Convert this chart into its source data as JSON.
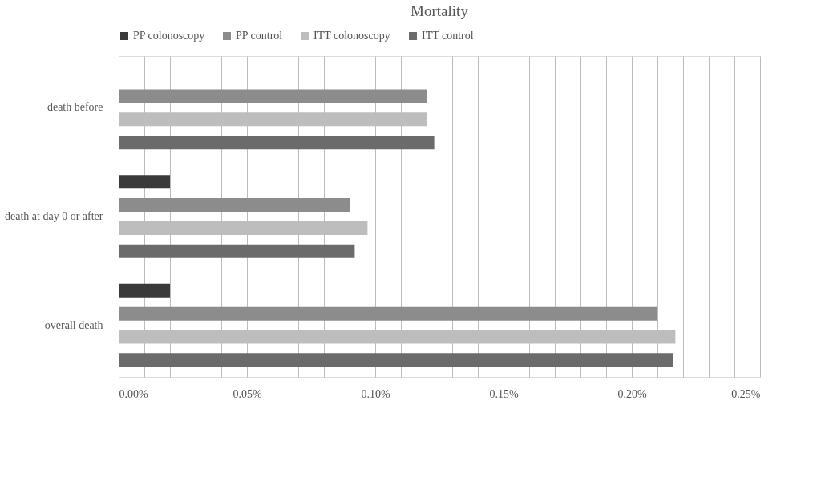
{
  "chart_data": {
    "type": "bar",
    "orientation": "horizontal",
    "title": "Mortality",
    "categories": [
      "death before",
      "death at day 0 or after",
      "overall death"
    ],
    "series": [
      {
        "name": "PP colonoscopy",
        "color": "#3a3a3a",
        "values": [
          null,
          0.02,
          0.02
        ]
      },
      {
        "name": "PP control",
        "color": "#8c8c8c",
        "values": [
          0.12,
          0.09,
          0.21
        ]
      },
      {
        "name": "ITT colonoscopy",
        "color": "#bdbdbd",
        "values": [
          0.12,
          0.097,
          0.217
        ]
      },
      {
        "name": "ITT control",
        "color": "#6b6b6b",
        "values": [
          0.123,
          0.092,
          0.216
        ]
      }
    ],
    "xlim": [
      0,
      0.25
    ],
    "xticks": [
      {
        "value": 0,
        "label": "0.00%"
      },
      {
        "value": 0.01,
        "label": null
      },
      {
        "value": 0.02,
        "label": null
      },
      {
        "value": 0.03,
        "label": null
      },
      {
        "value": 0.04,
        "label": null
      },
      {
        "value": 0.05,
        "label": "0.05%"
      },
      {
        "value": 0.06,
        "label": null
      },
      {
        "value": 0.07,
        "label": null
      },
      {
        "value": 0.08,
        "label": null
      },
      {
        "value": 0.09,
        "label": null
      },
      {
        "value": 0.1,
        "label": "0.10%"
      },
      {
        "value": 0.11,
        "label": null
      },
      {
        "value": 0.12,
        "label": null
      },
      {
        "value": 0.13,
        "label": null
      },
      {
        "value": 0.14,
        "label": null
      },
      {
        "value": 0.15,
        "label": "0.15%"
      },
      {
        "value": 0.16,
        "label": null
      },
      {
        "value": 0.17,
        "label": null
      },
      {
        "value": 0.18,
        "label": null
      },
      {
        "value": 0.19,
        "label": null
      },
      {
        "value": 0.2,
        "label": "0.20%"
      },
      {
        "value": 0.21,
        "label": null
      },
      {
        "value": 0.22,
        "label": null
      },
      {
        "value": 0.23,
        "label": null
      },
      {
        "value": 0.24,
        "label": null
      },
      {
        "value": 0.25,
        "label": "0.25%"
      }
    ],
    "grid": "x",
    "legend": "top"
  }
}
